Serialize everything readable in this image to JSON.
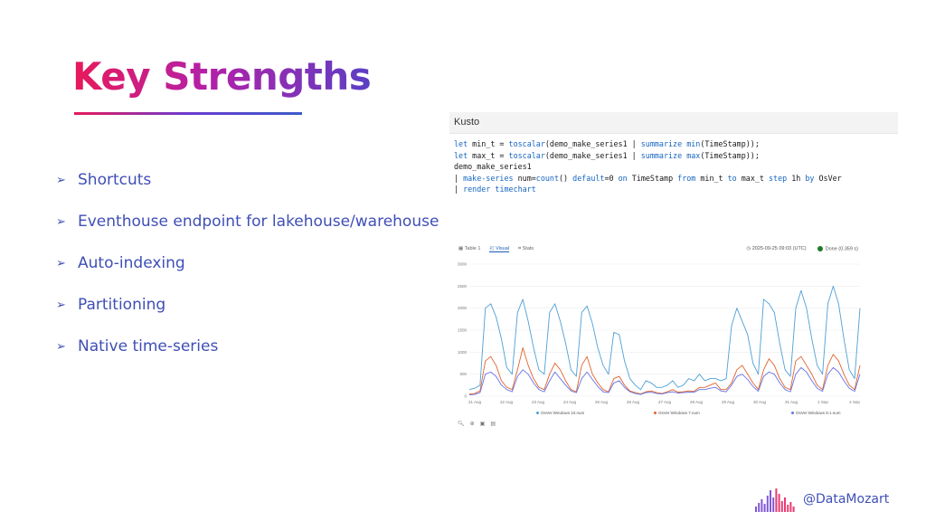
{
  "slide": {
    "title": "Key Strengths",
    "bullets": [
      "Shortcuts",
      "Eventhouse endpoint for lakehouse/warehouse",
      "Auto-indexing",
      "Partitioning",
      "Native time-series"
    ],
    "handle": "@DataMozart"
  },
  "kusto": {
    "header": "Kusto",
    "code_lines": [
      "let min_t = toscalar(demo_make_series1 | summarize min(TimeStamp));",
      "let max_t = toscalar(demo_make_series1 | summarize max(TimeStamp));",
      "demo_make_series1",
      "| make-series num=count() default=0 on TimeStamp from min_t to max_t step 1h by OsVer",
      "| render timechart"
    ]
  },
  "results": {
    "tabs": [
      "Table 1",
      "Visual",
      "Stats"
    ],
    "active_tab": "Visual",
    "timestamp": "2025-09-25 09:03 (UTC)",
    "status": "Done (0.359 s)"
  },
  "chart_data": {
    "type": "line",
    "ylim": [
      0,
      3000
    ],
    "yticks": [
      "0",
      "500",
      "1000",
      "1500",
      "2000",
      "2500",
      "3000"
    ],
    "x_tick_labels": [
      "21 Aug",
      "22 Aug",
      "23 Aug",
      "24 Aug",
      "25 Aug",
      "26 Aug",
      "27 Aug",
      "28 Aug",
      "29 Aug",
      "30 Aug",
      "31 Aug",
      "1 Sep",
      "2 Sep"
    ],
    "series": [
      {
        "name": "OsVer:Windows 10.num",
        "color": "#4e9fd6",
        "values": [
          150,
          180,
          250,
          2000,
          2100,
          1800,
          1300,
          650,
          500,
          1900,
          2200,
          1700,
          1100,
          600,
          500,
          1900,
          2100,
          1700,
          1200,
          600,
          450,
          1900,
          2050,
          1650,
          1100,
          700,
          500,
          1450,
          1400,
          800,
          400,
          250,
          150,
          350,
          300,
          200,
          200,
          250,
          350,
          200,
          250,
          400,
          350,
          500,
          350,
          400,
          400,
          350,
          400,
          1600,
          2000,
          1700,
          1400,
          750,
          500,
          2200,
          2100,
          1900,
          1200,
          600,
          450,
          2000,
          2400,
          2000,
          1300,
          700,
          500,
          2100,
          2500,
          2100,
          1300,
          600,
          400,
          2000
        ]
      },
      {
        "name": "OsVer:Windows 7.num",
        "color": "#e0632b",
        "values": [
          50,
          60,
          120,
          800,
          900,
          700,
          350,
          200,
          150,
          600,
          1100,
          700,
          400,
          200,
          150,
          500,
          750,
          600,
          350,
          150,
          100,
          700,
          900,
          500,
          300,
          150,
          100,
          400,
          450,
          250,
          120,
          80,
          50,
          100,
          120,
          80,
          60,
          100,
          150,
          90,
          100,
          120,
          110,
          200,
          200,
          250,
          300,
          150,
          150,
          300,
          600,
          700,
          500,
          300,
          150,
          600,
          850,
          700,
          400,
          200,
          150,
          800,
          900,
          700,
          500,
          250,
          150,
          700,
          950,
          800,
          500,
          250,
          150,
          700
        ]
      },
      {
        "name": "OsVer:Windows 8.1.num",
        "color": "#6674e8",
        "values": [
          30,
          40,
          80,
          500,
          550,
          450,
          250,
          150,
          100,
          450,
          600,
          500,
          300,
          150,
          100,
          350,
          550,
          400,
          250,
          120,
          80,
          400,
          550,
          380,
          220,
          100,
          80,
          300,
          350,
          200,
          100,
          60,
          40,
          80,
          90,
          60,
          50,
          80,
          100,
          70,
          80,
          90,
          90,
          150,
          150,
          180,
          200,
          120,
          100,
          250,
          450,
          500,
          380,
          220,
          110,
          450,
          550,
          500,
          300,
          150,
          100,
          500,
          650,
          550,
          350,
          180,
          110,
          500,
          650,
          550,
          350,
          180,
          110,
          500
        ]
      }
    ]
  }
}
